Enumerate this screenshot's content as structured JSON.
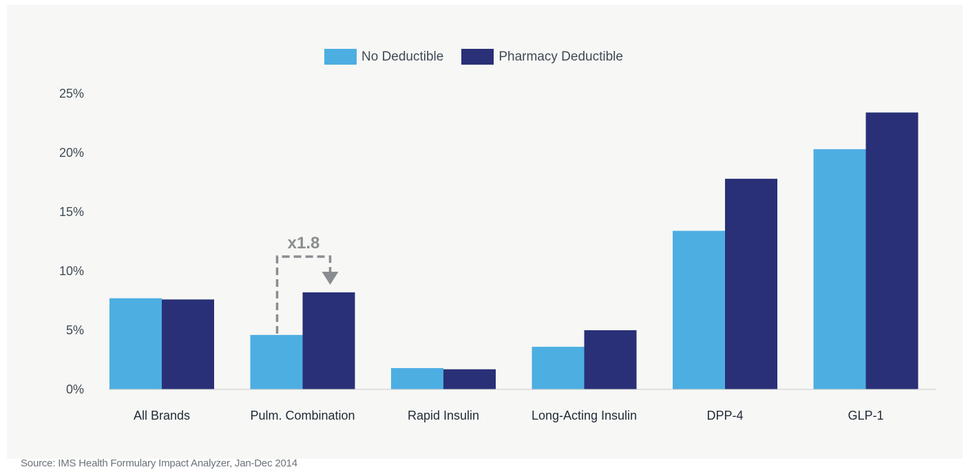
{
  "chart_data": {
    "type": "bar",
    "categories": [
      "All Brands",
      "Pulm. Combination",
      "Rapid Insulin",
      "Long-Acting  Insulin",
      "DPP-4",
      "GLP-1"
    ],
    "series": [
      {
        "name": "No Deductible",
        "color": "#4daee2",
        "values": [
          7.7,
          4.6,
          1.8,
          3.6,
          13.4,
          20.3
        ]
      },
      {
        "name": "Pharmacy Deductible",
        "color": "#293077",
        "values": [
          7.6,
          8.2,
          1.7,
          5.0,
          17.8,
          23.4
        ]
      }
    ],
    "y_ticks": [
      "0%",
      "5%",
      "10%",
      "15%",
      "20%",
      "25%"
    ],
    "ylim": [
      0,
      25
    ],
    "grid": false,
    "legend_position": "top-center",
    "annotation": {
      "text": "x1.8",
      "category": "Pulm. Combination",
      "from_series": "No Deductible",
      "to_series": "Pharmacy Deductible"
    }
  },
  "source": "Source: IMS Health Formulary Impact Analyzer, Jan-Dec 2014"
}
